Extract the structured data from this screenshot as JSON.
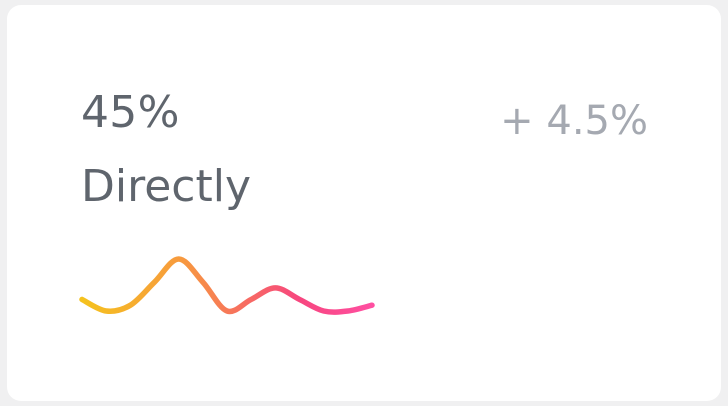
{
  "stat": {
    "value": "45%",
    "label": "Directly",
    "change": "+ 4.5%"
  },
  "sparkline": {
    "icon": "sparkline-chart",
    "gradient_colors": [
      "#f5c21e",
      "#f79a3e",
      "#f7467f",
      "#ff4fa1"
    ],
    "values": [
      4,
      2,
      3,
      7,
      11,
      7,
      2,
      4,
      6,
      4,
      2,
      2,
      3
    ]
  }
}
